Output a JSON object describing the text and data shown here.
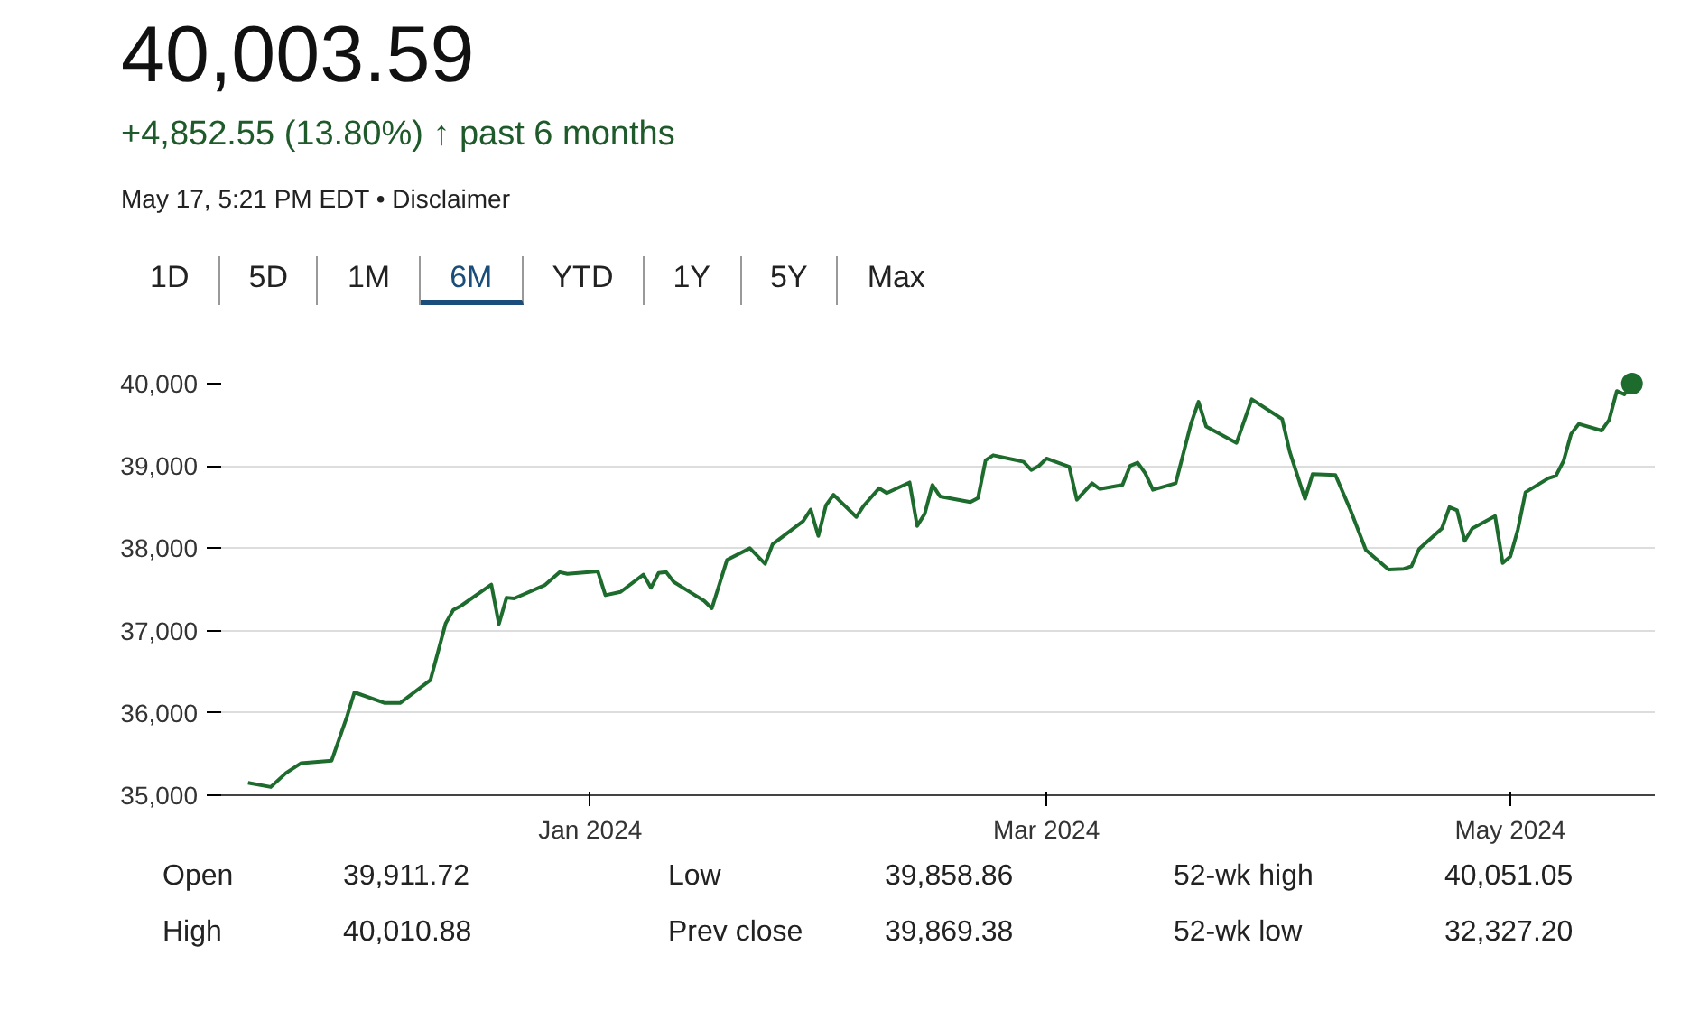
{
  "chart_data": {
    "type": "line",
    "title": "40,003.59",
    "subtitle": "+4,852.55 (13.80%) ↑ past 6 months",
    "annotations": [
      "May 17, 5:21 PM EDT • Disclaimer",
      "1D",
      "5D",
      "1M",
      "6M",
      "YTD",
      "1Y",
      "5Y",
      "Max",
      "Open",
      "39,911.72",
      "High",
      "40,010.88",
      "Low",
      "39,858.86",
      "Prev close",
      "39,869.38",
      "52-wk high",
      "40,051.05",
      "52-wk low",
      "32,327.20"
    ],
    "series": [
      {
        "color": "#1e6b2e",
        "x": [
          "2023-11-17",
          "2023-11-20",
          "2023-11-22",
          "2023-11-24",
          "2023-11-28",
          "2023-11-30",
          "2023-12-01",
          "2023-12-05",
          "2023-12-07",
          "2023-12-11",
          "2023-12-13",
          "2023-12-14",
          "2023-12-15",
          "2023-12-19",
          "2023-12-20",
          "2023-12-21",
          "2023-12-22",
          "2023-12-26",
          "2023-12-28",
          "2023-12-29",
          "2024-01-02",
          "2024-01-03",
          "2024-01-05",
          "2024-01-08",
          "2024-01-09",
          "2024-01-10",
          "2024-01-11",
          "2024-01-12",
          "2024-01-16",
          "2024-01-17",
          "2024-01-19",
          "2024-01-22",
          "2024-01-24",
          "2024-01-25",
          "2024-01-29",
          "2024-01-30",
          "2024-01-31",
          "2024-02-01",
          "2024-02-02",
          "2024-02-05",
          "2024-02-06",
          "2024-02-08",
          "2024-02-09",
          "2024-02-12",
          "2024-02-13",
          "2024-02-14",
          "2024-02-15",
          "2024-02-16",
          "2024-02-20",
          "2024-02-21",
          "2024-02-22",
          "2024-02-23",
          "2024-02-26",
          "2024-02-27",
          "2024-02-28",
          "2024-02-29",
          "2024-03-01",
          "2024-03-04",
          "2024-03-05",
          "2024-03-07",
          "2024-03-08",
          "2024-03-11",
          "2024-03-12",
          "2024-03-13",
          "2024-03-14",
          "2024-03-15",
          "2024-03-18",
          "2024-03-20",
          "2024-03-21",
          "2024-03-22",
          "2024-03-26",
          "2024-03-28",
          "2024-04-01",
          "2024-04-02",
          "2024-04-04",
          "2024-04-05",
          "2024-04-08",
          "2024-04-10",
          "2024-04-12",
          "2024-04-15",
          "2024-04-17",
          "2024-04-18",
          "2024-04-19",
          "2024-04-22",
          "2024-04-23",
          "2024-04-24",
          "2024-04-25",
          "2024-04-26",
          "2024-04-29",
          "2024-04-30",
          "2024-05-01",
          "2024-05-02",
          "2024-05-03",
          "2024-05-06",
          "2024-05-07",
          "2024-05-08",
          "2024-05-09",
          "2024-05-10",
          "2024-05-13",
          "2024-05-14",
          "2024-05-15",
          "2024-05-16",
          "2024-05-17"
        ],
        "values": [
          35150,
          35100,
          35270,
          35390,
          35420,
          35950,
          36250,
          36120,
          36120,
          36400,
          37090,
          37250,
          37300,
          37560,
          37080,
          37400,
          37390,
          37550,
          37710,
          37690,
          37720,
          37430,
          37470,
          37680,
          37520,
          37700,
          37710,
          37590,
          37360,
          37270,
          37860,
          38000,
          37810,
          38050,
          38330,
          38470,
          38150,
          38520,
          38650,
          38380,
          38520,
          38730,
          38670,
          38800,
          38270,
          38420,
          38770,
          38630,
          38560,
          38610,
          39070,
          39130,
          39070,
          39050,
          38950,
          39000,
          39090,
          38990,
          38590,
          38790,
          38720,
          38770,
          39000,
          39040,
          38910,
          38710,
          38790,
          39510,
          39780,
          39480,
          39280,
          39810,
          39570,
          39170,
          38600,
          38900,
          38890,
          38460,
          37980,
          37740,
          37750,
          37780,
          37990,
          38240,
          38500,
          38460,
          38090,
          38240,
          38390,
          37820,
          37900,
          38230,
          38680,
          38850,
          38880,
          39060,
          39390,
          39510,
          39430,
          39560,
          39910,
          39870,
          40000
        ]
      },
      {
        "type": "scatter",
        "color": "#1e6b2e",
        "marker": "circle",
        "x": [
          "2024-05-17"
        ],
        "values": [
          40000
        ]
      }
    ],
    "xlim": [
      "2023-11-13",
      "2024-05-20"
    ],
    "xticks": [
      {
        "value": "2024-01-01",
        "label": "Jan 2024"
      },
      {
        "value": "2024-03-01",
        "label": "Mar 2024"
      },
      {
        "value": "2024-05-01",
        "label": "May 2024"
      }
    ],
    "ylim": [
      35000,
      40000
    ],
    "yticks": [
      {
        "value": 35000,
        "label": "35,000"
      },
      {
        "value": 36000,
        "label": "36,000"
      },
      {
        "value": 37000,
        "label": "37,000"
      },
      {
        "value": 38000,
        "label": "38,000"
      },
      {
        "value": 39000,
        "label": "39,000"
      },
      {
        "value": 40000,
        "label": "40,000"
      }
    ],
    "grid": "y",
    "marker": "none",
    "line_style": "solid"
  }
}
